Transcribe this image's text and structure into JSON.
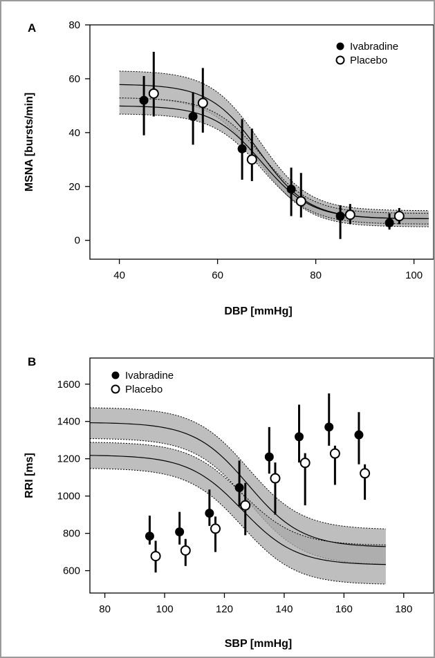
{
  "chart_data": [
    {
      "type": "scatter",
      "panel_label": "A",
      "xlabel": "DBP [mmHg]",
      "ylabel": "MSNA [bursts/min]",
      "xlim": [
        34,
        104
      ],
      "ylim": [
        -7,
        80
      ],
      "xticks": [
        40,
        60,
        80,
        100
      ],
      "yticks": [
        0,
        20,
        40,
        60,
        80
      ],
      "grid": false,
      "legend": "top-right",
      "series": [
        {
          "name": "Ivabradine",
          "marker": "filled",
          "points": [
            {
              "x": 45,
              "y": 52,
              "lo": 39,
              "hi": 61
            },
            {
              "x": 55,
              "y": 46,
              "lo": 35.5,
              "hi": 55
            },
            {
              "x": 65,
              "y": 34,
              "lo": 22.5,
              "hi": 45
            },
            {
              "x": 75,
              "y": 19,
              "lo": 9,
              "hi": 27
            },
            {
              "x": 85,
              "y": 9,
              "lo": 0.5,
              "hi": 13
            },
            {
              "x": 95,
              "y": 6.5,
              "lo": 4,
              "hi": 10
            }
          ],
          "curve": {
            "bottom": 8,
            "top": 58,
            "mid": 68.5,
            "slope": 5
          },
          "band": {
            "bottom_lo": 5,
            "bottom_hi": 11,
            "top_lo": 53,
            "top_hi": 63
          }
        },
        {
          "name": "Placebo",
          "marker": "open",
          "points": [
            {
              "x": 47,
              "y": 54.5,
              "lo": 46,
              "hi": 70
            },
            {
              "x": 57,
              "y": 51,
              "lo": 40,
              "hi": 64
            },
            {
              "x": 67,
              "y": 30,
              "lo": 22,
              "hi": 41.5
            },
            {
              "x": 77,
              "y": 14.5,
              "lo": 8.5,
              "hi": 25
            },
            {
              "x": 87,
              "y": 9.5,
              "lo": 6,
              "hi": 13.5
            },
            {
              "x": 97,
              "y": 9,
              "lo": 6,
              "hi": 12
            }
          ],
          "curve": {
            "bottom": 8,
            "top": 50,
            "mid": 69,
            "slope": 5
          },
          "band": {
            "bottom_lo": 6,
            "bottom_hi": 10,
            "top_lo": 47,
            "top_hi": 53
          }
        }
      ]
    },
    {
      "type": "scatter",
      "panel_label": "B",
      "xlabel": "SBP [mmHg]",
      "ylabel": "RRI [ms]",
      "xlim": [
        75,
        190
      ],
      "ylim": [
        480,
        1740
      ],
      "xticks": [
        80,
        100,
        120,
        140,
        160,
        180
      ],
      "yticks": [
        600,
        800,
        1000,
        1200,
        1400,
        1600
      ],
      "grid": false,
      "legend": "top-left",
      "series": [
        {
          "name": "Ivabradine",
          "marker": "filled",
          "points": [
            {
              "x": 95,
              "y": 785,
              "lo": 740,
              "hi": 895
            },
            {
              "x": 105,
              "y": 808,
              "lo": 740,
              "hi": 915
            },
            {
              "x": 115,
              "y": 908,
              "lo": 840,
              "hi": 1035
            },
            {
              "x": 125,
              "y": 1045,
              "lo": 945,
              "hi": 1190
            },
            {
              "x": 135,
              "y": 1210,
              "lo": 1120,
              "hi": 1370
            },
            {
              "x": 145,
              "y": 1318,
              "lo": 1180,
              "hi": 1490
            },
            {
              "x": 155,
              "y": 1370,
              "lo": 1270,
              "hi": 1550
            },
            {
              "x": 165,
              "y": 1328,
              "lo": 1170,
              "hi": 1450
            }
          ],
          "curve": {
            "bottom": 725,
            "top": 1395,
            "mid": 128,
            "slope": 9
          },
          "band": {
            "bottom_lo": 630,
            "bottom_hi": 820,
            "top_lo": 1310,
            "top_hi": 1475
          }
        },
        {
          "name": "Placebo",
          "marker": "open",
          "points": [
            {
              "x": 97,
              "y": 678,
              "lo": 590,
              "hi": 760
            },
            {
              "x": 107,
              "y": 708,
              "lo": 625,
              "hi": 770
            },
            {
              "x": 117,
              "y": 825,
              "lo": 700,
              "hi": 890
            },
            {
              "x": 127,
              "y": 950,
              "lo": 790,
              "hi": 1070
            },
            {
              "x": 137,
              "y": 1095,
              "lo": 900,
              "hi": 1180
            },
            {
              "x": 147,
              "y": 1178,
              "lo": 950,
              "hi": 1230
            },
            {
              "x": 157,
              "y": 1228,
              "lo": 1060,
              "hi": 1270
            },
            {
              "x": 167,
              "y": 1122,
              "lo": 980,
              "hi": 1170
            }
          ],
          "curve": {
            "bottom": 630,
            "top": 1220,
            "mid": 126,
            "slope": 9
          },
          "band": {
            "bottom_lo": 525,
            "bottom_hi": 735,
            "top_lo": 1150,
            "top_hi": 1290
          }
        }
      ]
    }
  ]
}
